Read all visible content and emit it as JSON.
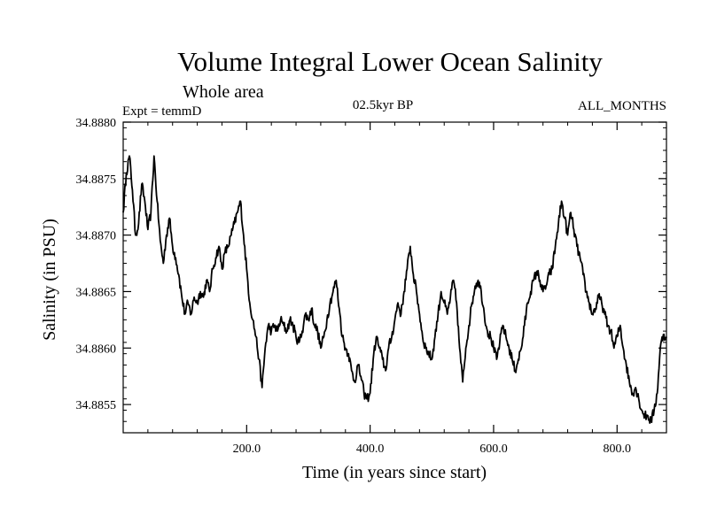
{
  "chart_data": {
    "type": "line",
    "title": "Volume Integral Lower Ocean Salinity",
    "subtitle": "Whole area",
    "left_label": "Expt = temmD",
    "center_label": "02.5kyr BP",
    "right_label": "ALL_MONTHS",
    "xlabel": "Time (in years since start)",
    "ylabel": "Salinity (in PSU)",
    "xlim": [
      0,
      880
    ],
    "ylim": [
      34.88525,
      34.888
    ],
    "x_ticks": [
      200,
      400,
      600,
      800
    ],
    "x_tick_labels": [
      "200.0",
      "400.0",
      "600.0",
      "800.0"
    ],
    "y_ticks": [
      34.8855,
      34.886,
      34.8865,
      34.887,
      34.8875,
      34.888
    ],
    "y_tick_labels": [
      "34.8855",
      "34.8860",
      "34.8865",
      "34.8870",
      "34.8875",
      "34.8880"
    ],
    "grid": false,
    "series": [
      {
        "name": "Salinity",
        "x": [
          0,
          5,
          10,
          15,
          20,
          25,
          30,
          35,
          40,
          45,
          50,
          55,
          60,
          65,
          70,
          75,
          80,
          85,
          90,
          95,
          100,
          105,
          110,
          115,
          120,
          125,
          130,
          135,
          140,
          145,
          150,
          155,
          160,
          165,
          170,
          175,
          180,
          185,
          190,
          195,
          200,
          205,
          210,
          215,
          220,
          225,
          230,
          235,
          240,
          245,
          250,
          255,
          260,
          265,
          270,
          275,
          280,
          285,
          290,
          295,
          300,
          305,
          310,
          315,
          320,
          325,
          330,
          335,
          340,
          345,
          350,
          355,
          360,
          365,
          370,
          375,
          380,
          385,
          390,
          395,
          400,
          405,
          410,
          415,
          420,
          425,
          430,
          435,
          440,
          445,
          450,
          455,
          460,
          465,
          470,
          475,
          480,
          485,
          490,
          495,
          500,
          505,
          510,
          515,
          520,
          525,
          530,
          535,
          540,
          545,
          550,
          555,
          560,
          565,
          570,
          575,
          580,
          585,
          590,
          595,
          600,
          605,
          610,
          615,
          620,
          625,
          630,
          635,
          640,
          645,
          650,
          655,
          660,
          665,
          670,
          675,
          680,
          685,
          690,
          695,
          700,
          705,
          710,
          715,
          720,
          725,
          730,
          735,
          740,
          745,
          750,
          755,
          760,
          765,
          770,
          775,
          780,
          785,
          790,
          795,
          800,
          805,
          810,
          815,
          820,
          825,
          830,
          835,
          840,
          845,
          850,
          855,
          860,
          865,
          870,
          875,
          880
        ],
        "values": [
          34.8872,
          34.88755,
          34.8877,
          34.8874,
          34.887,
          34.8871,
          34.88745,
          34.8873,
          34.88705,
          34.8872,
          34.8877,
          34.8873,
          34.88695,
          34.88675,
          34.887,
          34.88715,
          34.8869,
          34.8868,
          34.88665,
          34.88645,
          34.8863,
          34.8864,
          34.8863,
          34.88645,
          34.8864,
          34.8865,
          34.88645,
          34.8866,
          34.8865,
          34.8867,
          34.8868,
          34.8869,
          34.8867,
          34.88685,
          34.8869,
          34.887,
          34.8871,
          34.8872,
          34.8873,
          34.887,
          34.8867,
          34.8864,
          34.88625,
          34.8861,
          34.8859,
          34.88565,
          34.886,
          34.8862,
          34.88615,
          34.8862,
          34.88615,
          34.88625,
          34.8862,
          34.88615,
          34.88625,
          34.8862,
          34.8861,
          34.88605,
          34.88615,
          34.8863,
          34.88625,
          34.88635,
          34.8862,
          34.88615,
          34.886,
          34.8861,
          34.88625,
          34.8864,
          34.8865,
          34.8866,
          34.88635,
          34.8861,
          34.886,
          34.88595,
          34.8858,
          34.8857,
          34.88585,
          34.88575,
          34.8856,
          34.88555,
          34.8856,
          34.8859,
          34.8861,
          34.886,
          34.8859,
          34.8858,
          34.886,
          34.8861,
          34.88625,
          34.8864,
          34.8863,
          34.8865,
          34.8867,
          34.8869,
          34.88665,
          34.8865,
          34.8863,
          34.8861,
          34.886,
          34.88595,
          34.8859,
          34.8861,
          34.8863,
          34.8865,
          34.8864,
          34.8863,
          34.88645,
          34.8866,
          34.8864,
          34.886,
          34.8857,
          34.886,
          34.8862,
          34.8864,
          34.88655,
          34.8866,
          34.8865,
          34.8863,
          34.88615,
          34.8861,
          34.886,
          34.8859,
          34.88605,
          34.8862,
          34.8861,
          34.886,
          34.8859,
          34.8858,
          34.8859,
          34.886,
          34.8862,
          34.8864,
          34.8865,
          34.8866,
          34.88668,
          34.8866,
          34.8865,
          34.88655,
          34.88665,
          34.8867,
          34.8869,
          34.8871,
          34.8873,
          34.88715,
          34.887,
          34.8872,
          34.88705,
          34.8869,
          34.8868,
          34.88665,
          34.8865,
          34.8864,
          34.8863,
          34.88635,
          34.88645,
          34.8864,
          34.8863,
          34.8862,
          34.88615,
          34.886,
          34.8861,
          34.8862,
          34.886,
          34.88585,
          34.8857,
          34.8856,
          34.88565,
          34.88555,
          34.88545,
          34.8854,
          34.8854,
          34.88535,
          34.88545,
          34.8856,
          34.886,
          34.88612,
          34.8861
        ]
      }
    ]
  }
}
